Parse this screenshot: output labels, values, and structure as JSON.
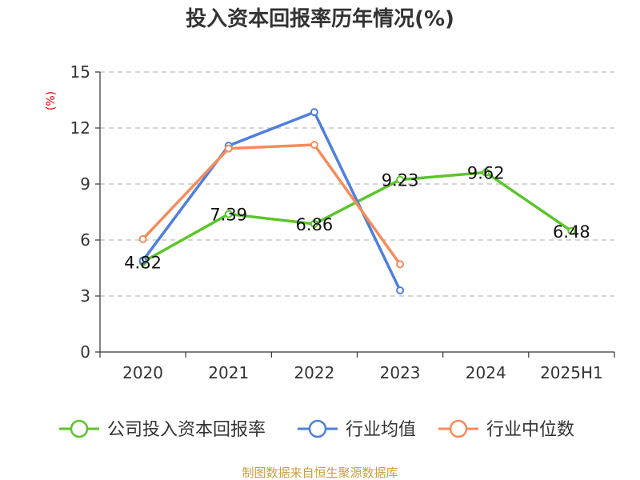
{
  "chart_data": {
    "type": "line",
    "title": "投入资本回报率历年情况(%)",
    "ylabel": "(%)",
    "xlabel": "",
    "categories": [
      "2020",
      "2021",
      "2022",
      "2023",
      "2024",
      "2025H1"
    ],
    "ylim": [
      0,
      15
    ],
    "yticks": [
      0,
      3,
      6,
      9,
      12,
      15
    ],
    "grid": true,
    "legend_position": "bottom",
    "series": [
      {
        "name": "公司投入资本回报率",
        "color": "#5bc52a",
        "values": [
          4.82,
          7.39,
          6.86,
          9.23,
          9.62,
          6.48
        ],
        "labels": [
          "4.82",
          "7.39",
          "6.86",
          "9.23",
          "9.62",
          "6.48"
        ]
      },
      {
        "name": "行业均值",
        "color": "#4f7fdc",
        "values": [
          4.9,
          11.05,
          12.85,
          3.3,
          null,
          null
        ]
      },
      {
        "name": "行业中位数",
        "color": "#f68b5b",
        "values": [
          6.05,
          10.9,
          11.1,
          4.7,
          null,
          null
        ]
      }
    ],
    "source": "制图数据来自恒生聚源数据库"
  }
}
